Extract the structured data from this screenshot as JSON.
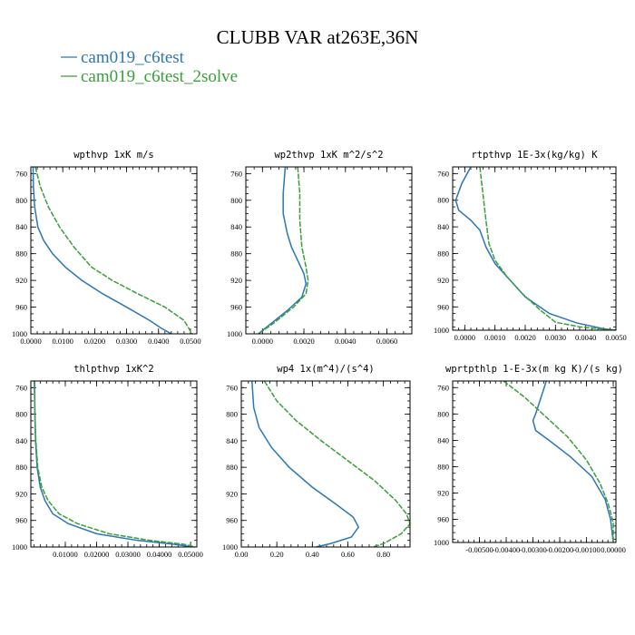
{
  "figure": {
    "title": "CLUBB VAR at263E,36N",
    "colors": {
      "c6test": "#2a77b4",
      "c6test_2solve": "#3a9e3a"
    },
    "legend": [
      "cam019_c6test",
      "cam019_c6test_2solve"
    ]
  },
  "chart_data": [
    {
      "type": "line",
      "title": "wpthvp  1xK m/s",
      "xlim": [
        0,
        0.052
      ],
      "ylim": [
        1000,
        750
      ],
      "x_ticks": [
        "0.0000",
        "0.0100",
        "0.0200",
        "0.0300",
        "0.0400",
        "0.0500"
      ],
      "x_tick_values": [
        0,
        0.01,
        0.02,
        0.03,
        0.04,
        0.05
      ],
      "y_ticks": [
        "760",
        "800",
        "840",
        "880",
        "920",
        "960",
        "1000"
      ],
      "y_tick_values": [
        760,
        800,
        840,
        880,
        920,
        960,
        1000
      ],
      "series": [
        {
          "name": "cam019_c6test",
          "color": "#2a77b4",
          "x": [
            0.0007,
            0.0008,
            0.0012,
            0.0022,
            0.004,
            0.0068,
            0.0108,
            0.016,
            0.0225,
            0.03,
            0.0372,
            0.041,
            0.044
          ],
          "y": [
            750,
            780,
            810,
            840,
            860,
            880,
            900,
            920,
            940,
            960,
            980,
            992,
            1000
          ]
        },
        {
          "name": "cam019_c6test_2solve",
          "color": "#3a9e3a",
          "x": [
            0.0014,
            0.003,
            0.0055,
            0.009,
            0.0135,
            0.019,
            0.0255,
            0.0335,
            0.042,
            0.048,
            0.0505
          ],
          "y": [
            750,
            780,
            810,
            840,
            870,
            900,
            920,
            940,
            960,
            980,
            1000
          ]
        }
      ]
    },
    {
      "type": "line",
      "title": "wp2thvp  1xK m^2/s^2",
      "xlim": [
        -0.0008,
        0.0072
      ],
      "ylim": [
        1000,
        750
      ],
      "x_ticks": [
        "0.0000",
        "0.0020",
        "0.0040",
        "0.0060"
      ],
      "x_tick_values": [
        0,
        0.002,
        0.004,
        0.006
      ],
      "y_ticks": [
        "760",
        "800",
        "840",
        "880",
        "920",
        "960",
        "1000"
      ],
      "y_tick_values": [
        760,
        800,
        840,
        880,
        920,
        960,
        1000
      ],
      "series": [
        {
          "name": "cam019_c6test",
          "color": "#2a77b4",
          "x": [
            0.0011,
            0.001,
            0.001,
            0.0012,
            0.0014,
            0.0017,
            0.002,
            0.0021,
            0.0019,
            0.0012,
            0.0004,
            -0.0002
          ],
          "y": [
            750,
            790,
            820,
            850,
            870,
            890,
            910,
            925,
            945,
            965,
            985,
            1000
          ]
        },
        {
          "name": "cam019_c6test_2solve",
          "color": "#3a9e3a",
          "x": [
            0.0017,
            0.0018,
            0.0018,
            0.0019,
            0.0021,
            0.0022,
            0.0021,
            0.0015,
            0.0005,
            -0.0002
          ],
          "y": [
            750,
            790,
            830,
            870,
            900,
            920,
            940,
            960,
            985,
            1000
          ]
        }
      ]
    },
    {
      "type": "line",
      "title": "rtpthvp  1E-3x(kg/kg) K",
      "xlim": [
        -0.0004,
        0.005
      ],
      "ylim": [
        995,
        750
      ],
      "x_ticks": [
        "0.0000",
        "0.0010",
        "0.0020",
        "0.0030",
        "0.0040",
        "0.0050"
      ],
      "x_tick_values": [
        0,
        0.001,
        0.002,
        0.003,
        0.004,
        0.005
      ],
      "y_ticks": [
        "760",
        "800",
        "840",
        "880",
        "920",
        "960",
        "1000"
      ],
      "y_tick_values": [
        760,
        800,
        840,
        880,
        920,
        960,
        1000
      ],
      "series": [
        {
          "name": "cam019_c6test",
          "color": "#2a77b4",
          "x": [
            0.0002,
            -0.0001,
            -0.0003,
            -0.0002,
            0.0002,
            0.0005,
            0.0007,
            0.001,
            0.0015,
            0.002,
            0.0028,
            0.0037,
            0.0046,
            0.005
          ],
          "y": [
            750,
            775,
            800,
            815,
            830,
            845,
            870,
            895,
            920,
            945,
            970,
            984,
            993,
            995
          ]
        },
        {
          "name": "cam019_c6test_2solve",
          "color": "#3a9e3a",
          "x": [
            0.0005,
            0.0006,
            0.0007,
            0.0008,
            0.001,
            0.0014,
            0.0019,
            0.0025,
            0.003,
            0.0038,
            0.0045,
            0.005
          ],
          "y": [
            750,
            790,
            830,
            865,
            890,
            915,
            940,
            965,
            983,
            990,
            993,
            995
          ]
        }
      ]
    },
    {
      "type": "line",
      "title": "thlpthvp  1xK^2",
      "xlim": [
        -0.001,
        0.052
      ],
      "ylim": [
        1000,
        750
      ],
      "x_ticks": [
        "0.01000",
        "0.02000",
        "0.03000",
        "0.04000",
        "0.05000"
      ],
      "x_tick_values": [
        0.01,
        0.02,
        0.03,
        0.04,
        0.05
      ],
      "y_ticks": [
        "760",
        "800",
        "840",
        "880",
        "920",
        "960",
        "1000"
      ],
      "y_tick_values": [
        760,
        800,
        840,
        880,
        920,
        960,
        1000
      ],
      "series": [
        {
          "name": "cam019_c6test",
          "color": "#2a77b4",
          "x": [
            0.0002,
            0.0003,
            0.0005,
            0.001,
            0.002,
            0.0035,
            0.006,
            0.011,
            0.02,
            0.033,
            0.045,
            0.051
          ],
          "y": [
            750,
            800,
            840,
            880,
            910,
            930,
            950,
            965,
            980,
            990,
            996,
            1000
          ]
        },
        {
          "name": "cam019_c6test_2solve",
          "color": "#3a9e3a",
          "x": [
            0.0001,
            0.0003,
            0.0006,
            0.0012,
            0.0025,
            0.0045,
            0.008,
            0.014,
            0.024,
            0.037,
            0.048,
            0.0515
          ],
          "y": [
            750,
            800,
            840,
            880,
            910,
            930,
            950,
            965,
            980,
            990,
            996,
            1000
          ]
        }
      ]
    },
    {
      "type": "line",
      "title": "wp4  1x(m^4)/(s^4)",
      "xlim": [
        0,
        0.95
      ],
      "ylim": [
        1000,
        750
      ],
      "x_ticks": [
        "0.00",
        "0.20",
        "0.40",
        "0.60",
        "0.80"
      ],
      "x_tick_values": [
        0,
        0.2,
        0.4,
        0.6,
        0.8
      ],
      "y_ticks": [
        "760",
        "800",
        "840",
        "880",
        "920",
        "960",
        "1000"
      ],
      "y_tick_values": [
        760,
        800,
        840,
        880,
        920,
        960,
        1000
      ],
      "series": [
        {
          "name": "cam019_c6test",
          "color": "#2a77b4",
          "x": [
            0.06,
            0.07,
            0.1,
            0.17,
            0.27,
            0.4,
            0.53,
            0.63,
            0.66,
            0.62,
            0.5,
            0.42
          ],
          "y": [
            750,
            790,
            820,
            850,
            880,
            910,
            935,
            955,
            970,
            985,
            995,
            1000
          ]
        },
        {
          "name": "cam019_c6test_2solve",
          "color": "#3a9e3a",
          "x": [
            0.13,
            0.2,
            0.31,
            0.45,
            0.6,
            0.75,
            0.87,
            0.93,
            0.95,
            0.9,
            0.8,
            0.74
          ],
          "y": [
            750,
            780,
            810,
            840,
            870,
            900,
            930,
            950,
            965,
            980,
            995,
            1000
          ]
        }
      ]
    },
    {
      "type": "line",
      "title": "wprtpthlp  1-E-3x(m kg K)/(s kg)",
      "xlim": [
        -0.006,
        0.0001
      ],
      "ylim": [
        995,
        750
      ],
      "x_ticks": [
        "-0.00500",
        "-0.00400",
        "-0.00300",
        "-0.00200",
        "-0.00100",
        "0.00000"
      ],
      "x_tick_values": [
        -0.005,
        -0.004,
        -0.003,
        -0.002,
        -0.001,
        0
      ],
      "y_ticks": [
        "760",
        "800",
        "840",
        "880",
        "920",
        "960",
        "1000"
      ],
      "y_tick_values": [
        760,
        800,
        840,
        880,
        920,
        960,
        1000
      ],
      "series": [
        {
          "name": "cam019_c6test",
          "color": "#2a77b4",
          "x": [
            -0.0025,
            -0.0027,
            -0.0029,
            -0.003,
            -0.0029,
            -0.0024,
            -0.0016,
            -0.0008,
            -0.0003,
            -0.0001,
            0.0
          ],
          "y": [
            750,
            775,
            800,
            810,
            825,
            840,
            865,
            895,
            930,
            960,
            995
          ]
        },
        {
          "name": "cam019_c6test_2solve",
          "color": "#3a9e3a",
          "x": [
            -0.0041,
            -0.0033,
            -0.0025,
            -0.0017,
            -0.001,
            -0.0005,
            -0.0002,
            0.0,
            0.0
          ],
          "y": [
            750,
            775,
            805,
            835,
            870,
            905,
            935,
            965,
            995
          ]
        }
      ]
    }
  ]
}
